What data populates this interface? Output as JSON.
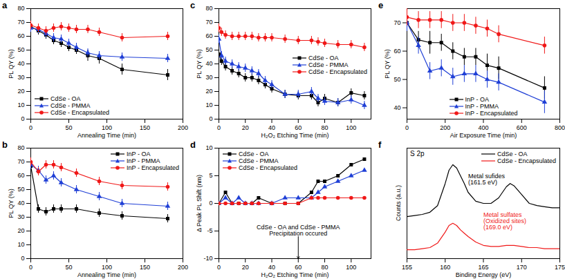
{
  "chart_data": [
    {
      "type": "line",
      "title": "a",
      "xlabel": "Annealing Time (min)",
      "ylabel": "PL QY (%)",
      "x": [
        0,
        10,
        20,
        30,
        40,
        50,
        60,
        75,
        90,
        120,
        180
      ],
      "xlim": [
        0,
        200
      ],
      "xticks": [
        0,
        50,
        100,
        150,
        200
      ],
      "ylim": [
        0,
        80
      ],
      "yticks": [
        0,
        10,
        20,
        30,
        40,
        50,
        60,
        70,
        80
      ],
      "grid": false,
      "legend": "lower left",
      "series": [
        {
          "name": "CdSe - OA",
          "color": "#000000",
          "marker": "square",
          "values": [
            67,
            64,
            61,
            57,
            55,
            52,
            50,
            46,
            44,
            36,
            32
          ],
          "errors": [
            3,
            3,
            3,
            3,
            3,
            3,
            3,
            4,
            4,
            4,
            4
          ]
        },
        {
          "name": "CdSe - PMMA",
          "color": "#1f3fd6",
          "marker": "triangle",
          "values": [
            66,
            65,
            62,
            59,
            58,
            55,
            52,
            48,
            46,
            45,
            44
          ],
          "errors": [
            3,
            3,
            3,
            3,
            3,
            3,
            3,
            3,
            3,
            3,
            3
          ]
        },
        {
          "name": "CdSe - Encapsulated",
          "color": "#f01818",
          "marker": "circle",
          "values": [
            68,
            66,
            64,
            66,
            67,
            66,
            65,
            65,
            63,
            59,
            60
          ],
          "errors": [
            3,
            3,
            3,
            3,
            3,
            3,
            3,
            3,
            3,
            3,
            3
          ]
        }
      ]
    },
    {
      "type": "line",
      "title": "b",
      "xlabel": "Annealing Time (min)",
      "ylabel": "PL QY (%)",
      "x": [
        0,
        10,
        20,
        30,
        40,
        60,
        90,
        120,
        180
      ],
      "xlim": [
        0,
        200
      ],
      "xticks": [
        0,
        50,
        100,
        150,
        200
      ],
      "ylim": [
        0,
        80
      ],
      "yticks": [
        0,
        10,
        20,
        30,
        40,
        50,
        60,
        70,
        80
      ],
      "grid": false,
      "legend": "upper right",
      "series": [
        {
          "name": "InP - OA",
          "color": "#000000",
          "marker": "square",
          "values": [
            67,
            36,
            34,
            36,
            36,
            36,
            33,
            31,
            29
          ],
          "errors": [
            3,
            3,
            3,
            3,
            3,
            3,
            3,
            3,
            3
          ]
        },
        {
          "name": "InP - PMMA",
          "color": "#1f3fd6",
          "marker": "triangle",
          "values": [
            68,
            64,
            57,
            60,
            55,
            50,
            45,
            40,
            38
          ],
          "errors": [
            3,
            3,
            3,
            3,
            3,
            3,
            3,
            3,
            3
          ]
        },
        {
          "name": "InP - Encapsulated",
          "color": "#f01818",
          "marker": "circle",
          "values": [
            70,
            63,
            68,
            68,
            66,
            62,
            56,
            53,
            52
          ],
          "errors": [
            3,
            3,
            3,
            3,
            3,
            3,
            3,
            3,
            3
          ]
        }
      ]
    },
    {
      "type": "line",
      "title": "c",
      "xlabel": "H₂O₂ Etching Time (min)",
      "ylabel": "PL QY (%)",
      "x": [
        0,
        2,
        5,
        10,
        15,
        20,
        25,
        30,
        35,
        40,
        50,
        60,
        70,
        75,
        80,
        90,
        100,
        110
      ],
      "xlim": [
        0,
        115
      ],
      "xticks": [
        0,
        20,
        40,
        60,
        80,
        100
      ],
      "ylim": [
        0,
        80
      ],
      "yticks": [
        0,
        10,
        20,
        30,
        40,
        50,
        60,
        70,
        80
      ],
      "grid": false,
      "legend": "center right",
      "series": [
        {
          "name": "CdSe - OA",
          "color": "#000000",
          "marker": "square",
          "values": [
            47,
            42,
            38,
            35,
            33,
            30,
            30,
            28,
            25,
            22,
            18,
            17,
            17,
            12,
            15,
            12,
            19,
            17
          ],
          "errors": [
            3,
            3,
            3,
            3,
            3,
            3,
            3,
            3,
            3,
            3,
            3,
            3,
            3,
            3,
            3,
            3,
            3,
            3
          ]
        },
        {
          "name": "CdSe - PMMA",
          "color": "#1f3fd6",
          "marker": "triangle",
          "values": [
            58,
            46,
            42,
            40,
            38,
            37,
            35,
            33,
            28,
            25,
            18,
            18,
            20,
            15,
            13,
            12,
            14,
            10
          ],
          "errors": [
            3,
            3,
            3,
            3,
            3,
            3,
            3,
            3,
            3,
            3,
            3,
            3,
            3,
            3,
            3,
            3,
            3,
            3
          ]
        },
        {
          "name": "CdSe - Encapsulated",
          "color": "#f01818",
          "marker": "circle",
          "values": [
            66,
            63,
            61,
            60,
            60,
            60,
            60,
            59,
            59,
            59,
            58,
            57,
            57,
            56,
            55,
            54,
            54,
            52
          ],
          "errors": [
            3,
            3,
            3,
            3,
            3,
            3,
            3,
            3,
            3,
            3,
            3,
            3,
            3,
            3,
            3,
            3,
            3,
            3
          ]
        }
      ]
    },
    {
      "type": "line",
      "title": "d",
      "xlabel": "H₂O₂ Etching Time (min)",
      "ylabel": "Δ Peak PL Shift (nm)",
      "x": [
        0,
        5,
        10,
        15,
        20,
        25,
        30,
        40,
        50,
        60,
        70,
        75,
        80,
        90,
        100,
        110
      ],
      "xlim": [
        0,
        115
      ],
      "xticks": [
        0,
        20,
        40,
        60,
        80,
        100
      ],
      "ylim": [
        -10,
        10
      ],
      "yticks": [
        -10,
        -5,
        0,
        5,
        10
      ],
      "grid": false,
      "legend": "upper left",
      "annotations": [
        {
          "text": "CdSe - OA and CdSe - PMMA\nPrecipitation occured",
          "x": 60,
          "y": -6,
          "color": "#000000",
          "marker": "arrow"
        }
      ],
      "series": [
        {
          "name": "CdSe - OA",
          "color": "#000000",
          "marker": "square",
          "values": [
            0,
            2,
            0,
            0,
            0,
            0,
            1,
            0,
            0,
            0,
            2,
            4,
            4,
            5,
            7,
            8
          ]
        },
        {
          "name": "CdSe - PMMA",
          "color": "#1f3fd6",
          "marker": "triangle",
          "values": [
            0,
            1,
            0,
            1,
            0,
            0,
            0,
            0,
            1,
            1,
            1,
            2,
            3,
            4,
            5,
            6
          ]
        },
        {
          "name": "CdSe - Encapsulated",
          "color": "#f01818",
          "marker": "circle",
          "values": [
            0,
            0,
            0,
            0,
            0,
            0,
            0,
            0,
            0,
            0,
            1,
            1,
            1,
            1,
            1,
            1
          ]
        }
      ]
    },
    {
      "type": "line",
      "title": "e",
      "xlabel": "Air Exposure Time (min)",
      "ylabel": "PL QY (%)",
      "x": [
        0,
        60,
        120,
        180,
        240,
        300,
        360,
        420,
        480,
        720
      ],
      "xlim": [
        0,
        800
      ],
      "xticks": [
        0,
        200,
        400,
        600,
        800
      ],
      "ylim": [
        36,
        75
      ],
      "yticks": [
        40,
        50,
        60,
        70
      ],
      "grid": false,
      "legend": "lower center",
      "series": [
        {
          "name": "InP - OA",
          "color": "#000000",
          "marker": "square",
          "values": [
            70,
            64,
            63,
            63,
            60,
            58,
            58,
            55,
            54,
            47
          ],
          "errors": [
            3,
            3,
            4,
            3,
            3,
            3,
            3,
            4,
            4,
            4
          ]
        },
        {
          "name": "InP - PMMA",
          "color": "#1f3fd6",
          "marker": "triangle",
          "values": [
            70,
            62,
            53,
            54,
            51,
            52,
            52,
            50,
            49,
            42
          ],
          "errors": [
            3,
            3,
            3,
            3,
            3,
            3,
            3,
            3,
            3,
            4
          ]
        },
        {
          "name": "InP - Encapsulated",
          "color": "#f01818",
          "marker": "circle",
          "values": [
            72,
            71,
            71,
            71,
            70,
            70,
            69,
            68,
            66,
            62
          ],
          "errors": [
            3,
            3,
            3,
            3,
            3,
            3,
            3,
            3,
            3,
            3
          ]
        }
      ]
    },
    {
      "type": "line",
      "title": "f",
      "subtitle": "S 2p",
      "xlabel": "Binding Energy (eV)",
      "ylabel": "Counts (a.u.)",
      "x": [
        155,
        156,
        157,
        158,
        159,
        160,
        160.5,
        161,
        161.5,
        162,
        162.5,
        163,
        164,
        165,
        166,
        167,
        168,
        168.5,
        169,
        170,
        171,
        172,
        173,
        174,
        175
      ],
      "xlim": [
        155,
        175
      ],
      "xticks": [
        155,
        160,
        165,
        170,
        175
      ],
      "ylim": [
        0,
        100
      ],
      "yticks": [],
      "tick_labels": "x",
      "grid": false,
      "legend": "upper right",
      "annotations": [
        {
          "text": "Metal sufides\n(161.5 eV)",
          "x": 163,
          "y": 77,
          "color": "#000000"
        },
        {
          "text": "Metal sulfates\n(Oxidized sites)\n(169.0 eV)",
          "x": 165,
          "y": 42,
          "color": "#f01818"
        }
      ],
      "series": [
        {
          "name": "CdSe - OA",
          "color": "#000000",
          "values": [
            38,
            39,
            40,
            42,
            48,
            68,
            80,
            85,
            82,
            75,
            68,
            60,
            52,
            50,
            50,
            55,
            65,
            68,
            66,
            58,
            50,
            48,
            47,
            46,
            46
          ]
        },
        {
          "name": "CdSe - Encapsulated",
          "color": "#f01818",
          "values": [
            8,
            8,
            9,
            10,
            14,
            24,
            30,
            32,
            30,
            26,
            23,
            20,
            15,
            12,
            11,
            11,
            12,
            12,
            12,
            11,
            10,
            10,
            9,
            9,
            9
          ]
        }
      ]
    }
  ]
}
